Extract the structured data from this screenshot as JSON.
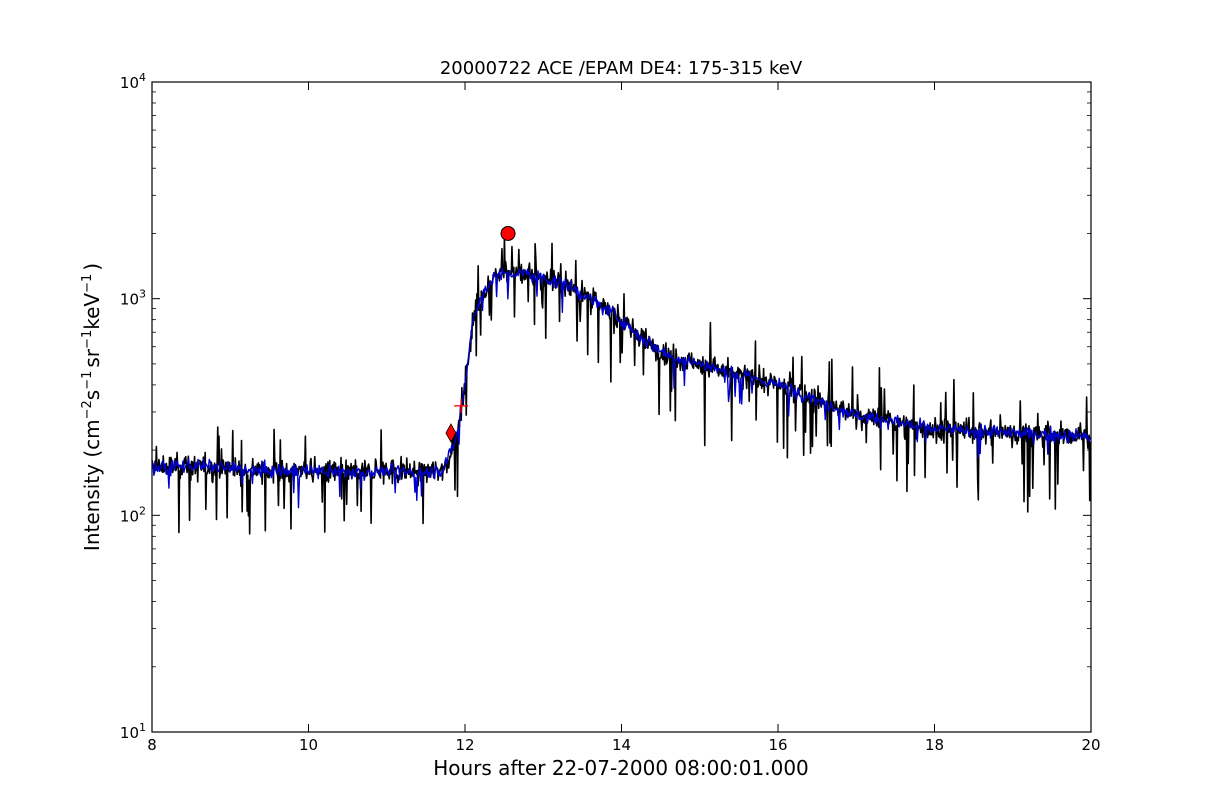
{
  "chart_data": {
    "type": "line",
    "title": "20000722 ACE /EPAM DE4: 175-315 keV",
    "xlabel": "Hours after 22-07-2000 08:00:01.000",
    "ylabel_parts": {
      "main": "Intensity (cm",
      "e1": "−2",
      "s": "s",
      "e2": "−1",
      "sr": "sr",
      "e3": "−1",
      "kev": "keV",
      "e4": "−1",
      "close": ")"
    },
    "xlim": [
      8,
      20
    ],
    "ylim": [
      10,
      10000
    ],
    "yscale": "log",
    "grid": false,
    "x_ticks": [
      8,
      10,
      12,
      14,
      16,
      18,
      20
    ],
    "x_tick_labels": [
      "8",
      "10",
      "12",
      "14",
      "16",
      "18",
      "20"
    ],
    "y_ticks": [
      {
        "value": 10,
        "base": "10",
        "exp": "1"
      },
      {
        "value": 100,
        "base": "10",
        "exp": "2"
      },
      {
        "value": 1000,
        "base": "10",
        "exp": "3"
      },
      {
        "value": 10000,
        "base": "10",
        "exp": "4"
      }
    ],
    "series": [
      {
        "color": "#000000",
        "style": "raw",
        "profile": [
          [
            8.0,
            165
          ],
          [
            8.5,
            170
          ],
          [
            9.0,
            165
          ],
          [
            9.5,
            160
          ],
          [
            10.0,
            160
          ],
          [
            10.5,
            158
          ],
          [
            11.0,
            160
          ],
          [
            11.5,
            158
          ],
          [
            11.7,
            162
          ],
          [
            11.8,
            185
          ],
          [
            11.9,
            240
          ],
          [
            12.0,
            400
          ],
          [
            12.1,
            800
          ],
          [
            12.25,
            1100
          ],
          [
            12.4,
            1300
          ],
          [
            12.6,
            1300
          ],
          [
            12.8,
            1300
          ],
          [
            13.0,
            1250
          ],
          [
            13.3,
            1150
          ],
          [
            13.6,
            1000
          ],
          [
            14.0,
            800
          ],
          [
            14.3,
            640
          ],
          [
            14.6,
            550
          ],
          [
            15.0,
            500
          ],
          [
            15.4,
            450
          ],
          [
            15.8,
            420
          ],
          [
            16.2,
            380
          ],
          [
            16.6,
            330
          ],
          [
            17.0,
            290
          ],
          [
            17.5,
            270
          ],
          [
            18.0,
            250
          ],
          [
            18.5,
            245
          ],
          [
            19.0,
            240
          ],
          [
            19.5,
            235
          ],
          [
            20.0,
            230
          ]
        ]
      },
      {
        "color": "#0000cc",
        "style": "smoothed",
        "profile": [
          [
            8.0,
            165
          ],
          [
            8.5,
            170
          ],
          [
            9.0,
            165
          ],
          [
            9.5,
            160
          ],
          [
            10.0,
            160
          ],
          [
            10.5,
            158
          ],
          [
            11.0,
            160
          ],
          [
            11.5,
            158
          ],
          [
            11.7,
            162
          ],
          [
            11.8,
            185
          ],
          [
            11.9,
            240
          ],
          [
            12.0,
            400
          ],
          [
            12.1,
            800
          ],
          [
            12.25,
            1100
          ],
          [
            12.4,
            1300
          ],
          [
            12.6,
            1300
          ],
          [
            12.8,
            1300
          ],
          [
            13.0,
            1250
          ],
          [
            13.3,
            1150
          ],
          [
            13.6,
            1000
          ],
          [
            14.0,
            800
          ],
          [
            14.3,
            640
          ],
          [
            14.6,
            550
          ],
          [
            15.0,
            500
          ],
          [
            15.4,
            450
          ],
          [
            15.8,
            420
          ],
          [
            16.2,
            380
          ],
          [
            16.6,
            330
          ],
          [
            17.0,
            290
          ],
          [
            17.5,
            270
          ],
          [
            18.0,
            250
          ],
          [
            18.5,
            245
          ],
          [
            19.0,
            240
          ],
          [
            19.5,
            235
          ],
          [
            20.0,
            230
          ]
        ]
      }
    ],
    "markers": [
      {
        "type": "diamond",
        "x": 11.82,
        "y": 240,
        "color": "#ff0000"
      },
      {
        "type": "plus",
        "x": 11.95,
        "y": 320,
        "color": "#ff0000"
      },
      {
        "type": "circle",
        "x": 12.55,
        "y": 2000,
        "color": "#ff0000"
      }
    ]
  }
}
